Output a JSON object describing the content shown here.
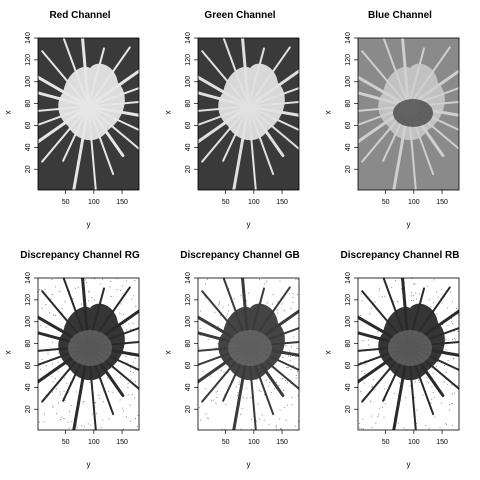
{
  "panels": [
    {
      "title": "Red Channel",
      "xlabel": "y",
      "ylabel": "x",
      "bg": "#3a3a3a",
      "fg": "#e6e6e6",
      "style": "light"
    },
    {
      "title": "Green Channel",
      "xlabel": "y",
      "ylabel": "x",
      "bg": "#3a3a3a",
      "fg": "#e0e0e0",
      "style": "light"
    },
    {
      "title": "Blue Channel",
      "xlabel": "y",
      "ylabel": "x",
      "bg": "#8a8a8a",
      "fg": "#cfcfcf",
      "style": "mid"
    },
    {
      "title": "Discrepancy Channel RG",
      "xlabel": "y",
      "ylabel": "x",
      "bg": "#ffffff",
      "fg": "#2a2a2a",
      "style": "dark"
    },
    {
      "title": "Discrepancy Channel GB",
      "xlabel": "y",
      "ylabel": "x",
      "bg": "#ffffff",
      "fg": "#3a3a3a",
      "style": "dark"
    },
    {
      "title": "Discrepancy Channel RB",
      "xlabel": "y",
      "ylabel": "x",
      "bg": "#ffffff",
      "fg": "#2a2a2a",
      "style": "dark"
    }
  ],
  "chart_data": [
    {
      "type": "heatmap",
      "title": "Red Channel",
      "xlabel": "y",
      "ylabel": "x",
      "xlim": [
        1,
        180
      ],
      "ylim": [
        1,
        140
      ],
      "xticks": [
        50,
        100,
        150
      ],
      "yticks": [
        20,
        40,
        60,
        80,
        100,
        120,
        140
      ]
    },
    {
      "type": "heatmap",
      "title": "Green Channel",
      "xlabel": "y",
      "ylabel": "x",
      "xlim": [
        1,
        180
      ],
      "ylim": [
        1,
        140
      ],
      "xticks": [
        50,
        100,
        150
      ],
      "yticks": [
        20,
        40,
        60,
        80,
        100,
        120,
        140
      ]
    },
    {
      "type": "heatmap",
      "title": "Blue Channel",
      "xlabel": "y",
      "ylabel": "x",
      "xlim": [
        1,
        180
      ],
      "ylim": [
        1,
        140
      ],
      "xticks": [
        50,
        100,
        150
      ],
      "yticks": [
        20,
        40,
        60,
        80,
        100,
        120,
        140
      ]
    },
    {
      "type": "heatmap",
      "title": "Discrepancy Channel RG",
      "xlabel": "y",
      "ylabel": "x",
      "xlim": [
        1,
        180
      ],
      "ylim": [
        1,
        140
      ],
      "xticks": [
        50,
        100,
        150
      ],
      "yticks": [
        20,
        40,
        60,
        80,
        100,
        120,
        140
      ]
    },
    {
      "type": "heatmap",
      "title": "Discrepancy Channel GB",
      "xlabel": "y",
      "ylabel": "x",
      "xlim": [
        1,
        180
      ],
      "ylim": [
        1,
        140
      ],
      "xticks": [
        50,
        100,
        150
      ],
      "yticks": [
        20,
        40,
        60,
        80,
        100,
        120,
        140
      ]
    },
    {
      "type": "heatmap",
      "title": "Discrepancy Channel RB",
      "xlabel": "y",
      "ylabel": "x",
      "xlim": [
        1,
        180
      ],
      "ylim": [
        1,
        140
      ],
      "xticks": [
        50,
        100,
        150
      ],
      "yticks": [
        20,
        40,
        60,
        80,
        100,
        120,
        140
      ]
    }
  ]
}
